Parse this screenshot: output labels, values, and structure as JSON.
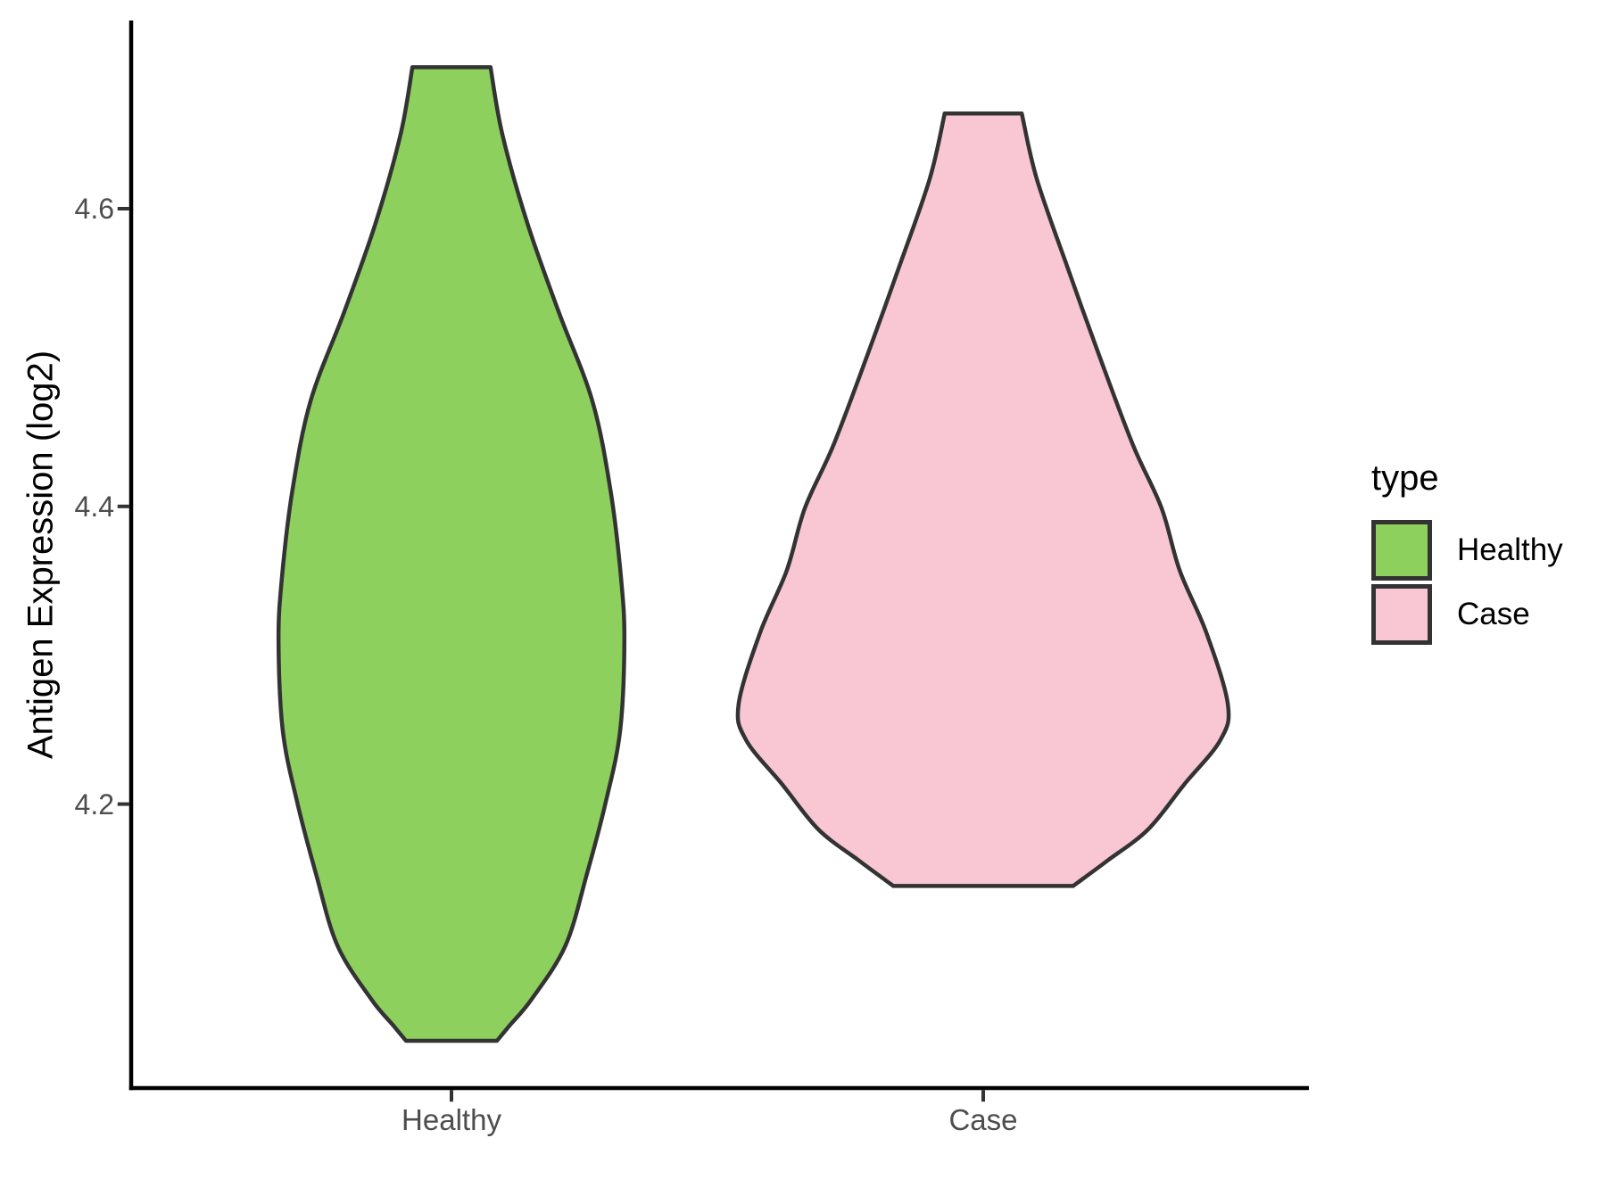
{
  "chart_data": {
    "type": "violin",
    "title": "",
    "xlabel": "",
    "ylabel": "Antigen Expression (log2)",
    "categories": [
      "Healthy",
      "Case"
    ],
    "y_ticks": [
      4.2,
      4.4,
      4.6
    ],
    "ylim": [
      3.99,
      4.73
    ],
    "grid": "off",
    "axis_color": "#000000",
    "tick_color": "#333333",
    "tick_label_color": "#4d4d4d",
    "outline_color": "#333333",
    "legend": {
      "title": "type",
      "position": "right",
      "entries": [
        {
          "label": "Healthy",
          "fill": "#8ed05e"
        },
        {
          "label": "Case",
          "fill": "#f8c7d3"
        }
      ]
    },
    "series": [
      {
        "name": "Healthy",
        "x": 1,
        "fill": "#8ed05e",
        "summary": {
          "min": 4.04,
          "max": 4.7
        },
        "density_profile": [
          [
            4.695,
            0.073
          ],
          [
            4.65,
            0.095
          ],
          [
            4.59,
            0.142
          ],
          [
            4.531,
            0.2
          ],
          [
            4.471,
            0.263
          ],
          [
            4.411,
            0.297
          ],
          [
            4.351,
            0.317
          ],
          [
            4.309,
            0.323
          ],
          [
            4.249,
            0.315
          ],
          [
            4.201,
            0.288
          ],
          [
            4.153,
            0.253
          ],
          [
            4.105,
            0.213
          ],
          [
            4.069,
            0.15
          ],
          [
            4.051,
            0.108
          ],
          [
            4.041,
            0.085
          ]
        ]
      },
      {
        "name": "Case",
        "x": 2,
        "fill": "#f8c7d3",
        "summary": {
          "min": 4.145,
          "max": 4.66
        },
        "density_profile": [
          [
            4.664,
            0.072
          ],
          [
            4.62,
            0.1
          ],
          [
            4.56,
            0.158
          ],
          [
            4.501,
            0.217
          ],
          [
            4.441,
            0.28
          ],
          [
            4.399,
            0.333
          ],
          [
            4.357,
            0.367
          ],
          [
            4.315,
            0.417
          ],
          [
            4.267,
            0.457
          ],
          [
            4.243,
            0.443
          ],
          [
            4.213,
            0.375
          ],
          [
            4.183,
            0.308
          ],
          [
            4.162,
            0.232
          ],
          [
            4.15,
            0.187
          ],
          [
            4.145,
            0.168
          ]
        ]
      }
    ]
  }
}
